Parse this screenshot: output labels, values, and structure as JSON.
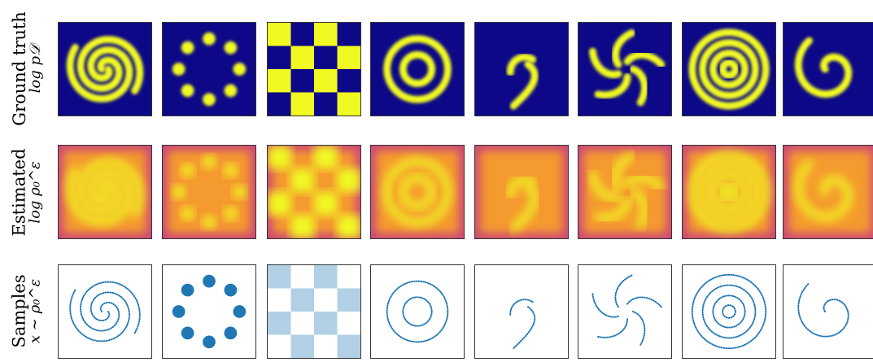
{
  "rows": [
    {
      "label": "Ground truth",
      "sublabel": "log p𝒟"
    },
    {
      "label": "Estimated",
      "sublabel": "log ρ₀^ε"
    },
    {
      "label": "Samples",
      "sublabel": "x ∼ ρ₀^ε"
    }
  ],
  "datasets": [
    "2spirals",
    "8gaussians",
    "checkerboard",
    "circles",
    "moons",
    "pinwheel",
    "rings",
    "swissroll"
  ],
  "colors": {
    "plasma_dark": "#0d0887",
    "plasma_mid": "#cc4778",
    "plasma_bright": "#f0f921",
    "sample_blue": "#1f77b4"
  }
}
